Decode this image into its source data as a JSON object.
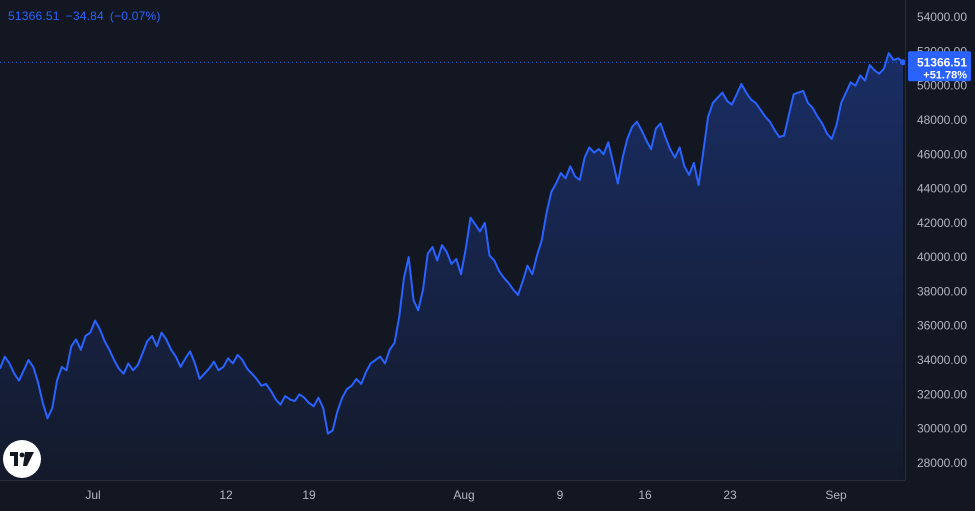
{
  "header": {
    "price": "51366.51",
    "change": "−34.84",
    "change_pct": "(−0.07%)"
  },
  "price_tag": {
    "price": "51366.51",
    "change_pct": "+51.78%"
  },
  "logo": {
    "icon": "tradingview-logo-icon",
    "text": "TV"
  },
  "colors": {
    "background": "#131722",
    "line": "#2962ff",
    "axis_text": "#b2b5be",
    "tag_bg": "#2962ff",
    "tag_text": "#ffffff"
  },
  "chart_data": {
    "type": "area",
    "title": "",
    "xlabel": "",
    "ylabel": "",
    "ylim": [
      27000,
      55000
    ],
    "grid": false,
    "y_ticks": [
      "28000.00",
      "30000.00",
      "32000.00",
      "34000.00",
      "36000.00",
      "38000.00",
      "40000.00",
      "42000.00",
      "44000.00",
      "46000.00",
      "48000.00",
      "50000.00",
      "52000.00",
      "54000.00"
    ],
    "x_ticks": [
      "Jul",
      "12",
      "19",
      "Aug",
      "9",
      "16",
      "23",
      "Sep"
    ],
    "last_value": 51366.51,
    "series": [
      {
        "values": [
          33500,
          34200,
          33800,
          33200,
          32800,
          33400,
          34000,
          33600,
          32700,
          31500,
          30600,
          31200,
          32800,
          33600,
          33400,
          34800,
          35200,
          34600,
          35400,
          35600,
          36300,
          35800,
          35100,
          34600,
          34000,
          33500,
          33200,
          33800,
          33400,
          33700,
          34400,
          35100,
          35400,
          34800,
          35600,
          35200,
          34600,
          34200,
          33600,
          34100,
          34500,
          33800,
          32900,
          33200,
          33500,
          33900,
          33400,
          33600,
          34100,
          33800,
          34300,
          34000,
          33500,
          33200,
          32900,
          32500,
          32600,
          32200,
          31700,
          31400,
          31900,
          31700,
          31600,
          32000,
          31800,
          31500,
          31300,
          31800,
          31200,
          29700,
          29900,
          31000,
          31800,
          32300,
          32500,
          32900,
          32600,
          33300,
          33800,
          34000,
          34200,
          33800,
          34600,
          35000,
          36500,
          38800,
          40000,
          37500,
          36900,
          38100,
          40200,
          40600,
          39800,
          40700,
          40300,
          39600,
          39900,
          39000,
          40500,
          42300,
          41900,
          41500,
          42000,
          40100,
          39800,
          39200,
          38800,
          38500,
          38100,
          37800,
          38600,
          39500,
          39000,
          40100,
          41000,
          42600,
          43800,
          44300,
          44900,
          44600,
          45300,
          44700,
          44500,
          45800,
          46400,
          46100,
          46300,
          46000,
          46700,
          45500,
          44300,
          45800,
          46900,
          47600,
          47900,
          47400,
          46800,
          46300,
          47500,
          47800,
          47000,
          46300,
          45800,
          46400,
          45300,
          44800,
          45500,
          44200,
          46200,
          48200,
          49000,
          49300,
          49600,
          49100,
          48900,
          49500,
          50100,
          49600,
          49200,
          49000,
          48600,
          48200,
          47900,
          47400,
          47000,
          47100,
          48300,
          49500,
          49600,
          49700,
          49000,
          48700,
          48200,
          47800,
          47200,
          46900,
          47700,
          49000,
          49600,
          50200,
          50000,
          50600,
          50300,
          51200,
          50900,
          50700,
          51000,
          51900,
          51500,
          51600,
          51366.51
        ]
      }
    ]
  }
}
